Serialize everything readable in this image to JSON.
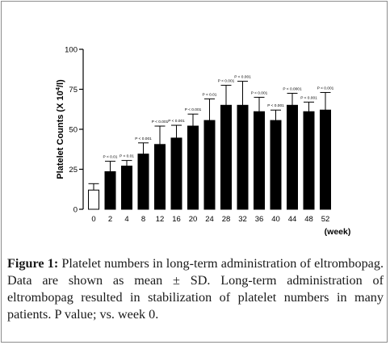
{
  "chart_data": {
    "type": "bar",
    "title": "",
    "ylabel": "Platelet Counts (X 10⁴/l)",
    "ylabel_main": "Platelet Counts (X 10",
    "ylabel_sup": "4",
    "ylabel_tail": "/l)",
    "xlabel": "(week)",
    "ylim": [
      0,
      100
    ],
    "yticks": [
      "0",
      "25",
      "50",
      "75",
      "100"
    ],
    "categories": [
      "0",
      "2",
      "4",
      "8",
      "12",
      "16",
      "20",
      "24",
      "28",
      "32",
      "36",
      "40",
      "44",
      "48",
      "52"
    ],
    "values": [
      12,
      23.5,
      27,
      34.5,
      40.5,
      44.5,
      52,
      55.5,
      65,
      65,
      61,
      55.5,
      65,
      61,
      62
    ],
    "errors": [
      4,
      6.5,
      3.5,
      7,
      11.5,
      8,
      7.5,
      13.5,
      12.5,
      15,
      9,
      6.5,
      7.5,
      6,
      11
    ],
    "p_labels": [
      "",
      "P < 0.01",
      "P < 0.01",
      "P < 0.001",
      "P < 0.001",
      "P < 0.001",
      "P < 0.001",
      "P < 0.01",
      "P < 0.001",
      "P < 0.001",
      "P < 0.001",
      "P < 0.001",
      "P < 0.0001",
      "P < 0.001",
      "P < 0.001"
    ],
    "bar_styles": [
      "open",
      "filled",
      "filled",
      "filled",
      "filled",
      "filled",
      "filled",
      "filled",
      "filled",
      "filled",
      "filled",
      "filled",
      "filled",
      "filled",
      "filled"
    ],
    "colors": {
      "bar": "#000000",
      "open_bar_fill": "#ffffff",
      "axis": "#000000"
    }
  },
  "caption": {
    "label": "Figure 1:",
    "text": " Platelet numbers in long-term administration of eltrombopag. Data are shown as mean ± SD. Long-term administration of eltrombopag resulted in stabilization of platelet numbers in many patients. P value; vs. week 0."
  }
}
